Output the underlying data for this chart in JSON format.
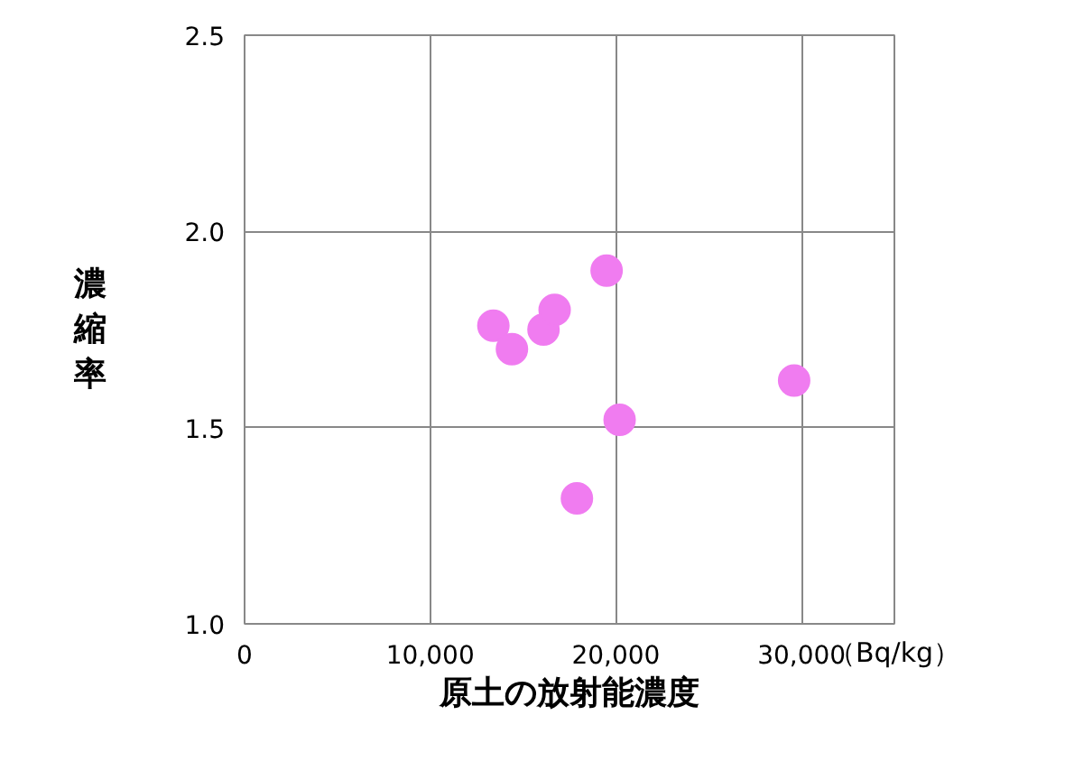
{
  "chart_data": {
    "type": "scatter",
    "xlabel": "原土の放射能濃度",
    "ylabel": "濃縮率",
    "annotations": [
      "（Bq/kg）"
    ],
    "x": [
      13400,
      14400,
      16100,
      16700,
      19500,
      20200,
      17900,
      29600
    ],
    "series": [
      {
        "color": "#f07cf0",
        "values": [
          1.76,
          1.7,
          1.75,
          1.8,
          1.9,
          1.52,
          1.32,
          1.62
        ]
      }
    ],
    "xlim": [
      0,
      35000
    ],
    "xticks": [
      0,
      {
        "value": 10000,
        "label": "10,000"
      },
      {
        "value": 20000,
        "label": "20,000"
      },
      {
        "value": 30000,
        "label": "30,000"
      }
    ],
    "ylim": [
      1.0,
      2.5
    ],
    "yticks": [
      {
        "value": 1.0,
        "label": "1.0"
      },
      {
        "value": 1.5,
        "label": "1.5"
      },
      {
        "value": 2.0,
        "label": "2.0"
      },
      {
        "value": 2.5,
        "label": "2.5"
      }
    ],
    "grid": true,
    "marker": "circle"
  }
}
